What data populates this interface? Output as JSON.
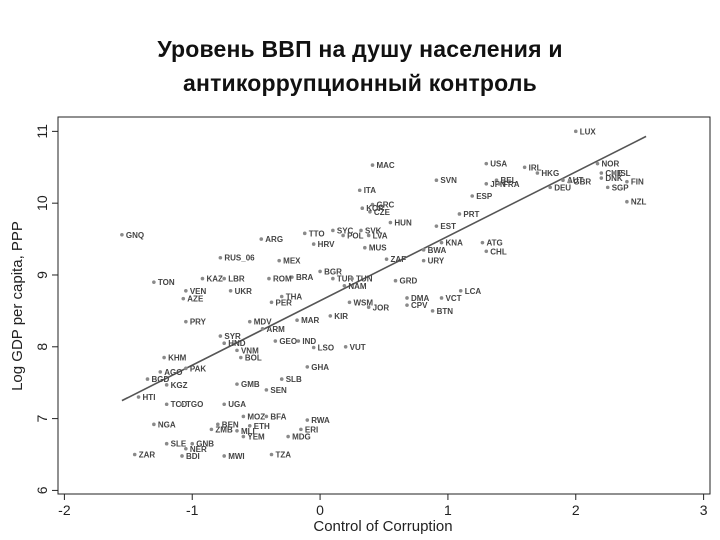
{
  "title": {
    "line1": "Уровень ВВП на душу населения и",
    "line2": "антикоррупционный контроль"
  },
  "chart_data": {
    "type": "scatter",
    "xlabel": "Control of Corruption",
    "ylabel": "Log GDP per capita, PPP",
    "xlim": [
      -2.05,
      3.05
    ],
    "ylim": [
      5.95,
      11.2
    ],
    "xticks": [
      -2,
      -1,
      0,
      1,
      2,
      3
    ],
    "yticks": [
      6,
      7,
      8,
      9,
      10,
      11
    ],
    "grid": false,
    "colors": {
      "point": "#8a8a8a",
      "line": "#555555",
      "text": "#222222"
    },
    "fit_line": {
      "x": [
        -1.55,
        2.55
      ],
      "y": [
        7.25,
        10.93
      ]
    },
    "points": [
      {
        "label": "LUX",
        "x": 2.0,
        "y": 11.0
      },
      {
        "label": "NOR",
        "x": 2.17,
        "y": 10.55
      },
      {
        "label": "USA",
        "x": 1.3,
        "y": 10.55
      },
      {
        "label": "IRL",
        "x": 1.6,
        "y": 10.5
      },
      {
        "label": "HKG",
        "x": 1.7,
        "y": 10.42
      },
      {
        "label": "CHE",
        "x": 2.2,
        "y": 10.42
      },
      {
        "label": "ISL",
        "x": 2.3,
        "y": 10.42
      },
      {
        "label": "BEL",
        "x": 1.38,
        "y": 10.32
      },
      {
        "label": "JPN",
        "x": 1.3,
        "y": 10.27
      },
      {
        "label": "FRA",
        "x": 1.4,
        "y": 10.27
      },
      {
        "label": "DEU",
        "x": 1.8,
        "y": 10.22
      },
      {
        "label": "AUT",
        "x": 1.9,
        "y": 10.32
      },
      {
        "label": "GBR",
        "x": 1.95,
        "y": 10.3
      },
      {
        "label": "DNK",
        "x": 2.2,
        "y": 10.35
      },
      {
        "label": "FIN",
        "x": 2.4,
        "y": 10.3
      },
      {
        "label": "SGP",
        "x": 2.25,
        "y": 10.22
      },
      {
        "label": "NZL",
        "x": 2.4,
        "y": 10.02
      },
      {
        "label": "MAC",
        "x": 0.41,
        "y": 10.53
      },
      {
        "label": "ITA",
        "x": 0.31,
        "y": 10.18
      },
      {
        "label": "ESP",
        "x": 1.19,
        "y": 10.1
      },
      {
        "label": "SVN",
        "x": 0.91,
        "y": 10.32
      },
      {
        "label": "PRT",
        "x": 1.09,
        "y": 9.85
      },
      {
        "label": "GRC",
        "x": 0.41,
        "y": 9.98
      },
      {
        "label": "CZE",
        "x": 0.39,
        "y": 9.88
      },
      {
        "label": "KOR",
        "x": 0.33,
        "y": 9.93
      },
      {
        "label": "HUN",
        "x": 0.55,
        "y": 9.73
      },
      {
        "label": "EST",
        "x": 0.91,
        "y": 9.68
      },
      {
        "label": "ATG",
        "x": 1.27,
        "y": 9.45
      },
      {
        "label": "CHL",
        "x": 1.3,
        "y": 9.33
      },
      {
        "label": "KNA",
        "x": 0.95,
        "y": 9.45
      },
      {
        "label": "BWA",
        "x": 0.81,
        "y": 9.35
      },
      {
        "label": "URY",
        "x": 0.81,
        "y": 9.2
      },
      {
        "label": "SYC",
        "x": 0.1,
        "y": 9.62
      },
      {
        "label": "SVK",
        "x": 0.32,
        "y": 9.62
      },
      {
        "label": "POL",
        "x": 0.18,
        "y": 9.55
      },
      {
        "label": "LVA",
        "x": 0.38,
        "y": 9.55
      },
      {
        "label": "TTO",
        "x": -0.12,
        "y": 9.58
      },
      {
        "label": "HRV",
        "x": -0.05,
        "y": 9.43
      },
      {
        "label": "MUS",
        "x": 0.35,
        "y": 9.38
      },
      {
        "label": "ZAF",
        "x": 0.52,
        "y": 9.22
      },
      {
        "label": "ARG",
        "x": -0.46,
        "y": 9.5
      },
      {
        "label": "GNQ",
        "x": -1.55,
        "y": 9.56
      },
      {
        "label": "RUS_06",
        "x": -0.78,
        "y": 9.24
      },
      {
        "label": "MEX",
        "x": -0.32,
        "y": 9.2
      },
      {
        "label": "BGR",
        "x": 0.0,
        "y": 9.05
      },
      {
        "label": "BRA",
        "x": -0.22,
        "y": 8.97
      },
      {
        "label": "TUR",
        "x": 0.1,
        "y": 8.95
      },
      {
        "label": "TUN",
        "x": 0.25,
        "y": 8.95
      },
      {
        "label": "GRD",
        "x": 0.59,
        "y": 8.92
      },
      {
        "label": "NAM",
        "x": 0.19,
        "y": 8.85
      },
      {
        "label": "ROM",
        "x": -0.4,
        "y": 8.95
      },
      {
        "label": "LBR",
        "x": -0.75,
        "y": 8.95
      },
      {
        "label": "TON",
        "x": -1.3,
        "y": 8.9
      },
      {
        "label": "KAZ",
        "x": -0.92,
        "y": 8.95
      },
      {
        "label": "VEN",
        "x": -1.05,
        "y": 8.78
      },
      {
        "label": "AZE",
        "x": -1.07,
        "y": 8.67
      },
      {
        "label": "UKR",
        "x": -0.7,
        "y": 8.78
      },
      {
        "label": "THA",
        "x": -0.3,
        "y": 8.7
      },
      {
        "label": "PER",
        "x": -0.38,
        "y": 8.62
      },
      {
        "label": "DMA",
        "x": 0.68,
        "y": 8.68
      },
      {
        "label": "VCT",
        "x": 0.95,
        "y": 8.68
      },
      {
        "label": "LCA",
        "x": 1.1,
        "y": 8.78
      },
      {
        "label": "CPV",
        "x": 0.68,
        "y": 8.58
      },
      {
        "label": "BTN",
        "x": 0.88,
        "y": 8.5
      },
      {
        "label": "WSM",
        "x": 0.23,
        "y": 8.62
      },
      {
        "label": "JOR",
        "x": 0.38,
        "y": 8.55
      },
      {
        "label": "PRY",
        "x": -1.05,
        "y": 8.35
      },
      {
        "label": "KIR",
        "x": 0.08,
        "y": 8.43
      },
      {
        "label": "MAR",
        "x": -0.18,
        "y": 8.37
      },
      {
        "label": "MDV",
        "x": -0.55,
        "y": 8.35
      },
      {
        "label": "ARM",
        "x": -0.45,
        "y": 8.25
      },
      {
        "label": "GEO",
        "x": -0.35,
        "y": 8.08
      },
      {
        "label": "IND",
        "x": -0.17,
        "y": 8.08
      },
      {
        "label": "LSO",
        "x": -0.05,
        "y": 7.99
      },
      {
        "label": "VUT",
        "x": 0.2,
        "y": 8.0
      },
      {
        "label": "HND",
        "x": -0.75,
        "y": 8.05
      },
      {
        "label": "VNM",
        "x": -0.65,
        "y": 7.95
      },
      {
        "label": "SYR",
        "x": -0.78,
        "y": 8.15
      },
      {
        "label": "KHM",
        "x": -1.22,
        "y": 7.85
      },
      {
        "label": "BOL",
        "x": -0.62,
        "y": 7.85
      },
      {
        "label": "PAK",
        "x": -1.05,
        "y": 7.7
      },
      {
        "label": "AGO",
        "x": -1.25,
        "y": 7.65
      },
      {
        "label": "BGD",
        "x": -1.35,
        "y": 7.55
      },
      {
        "label": "KGZ",
        "x": -1.2,
        "y": 7.47
      },
      {
        "label": "GHA",
        "x": -0.1,
        "y": 7.72
      },
      {
        "label": "SLB",
        "x": -0.3,
        "y": 7.55
      },
      {
        "label": "SEN",
        "x": -0.42,
        "y": 7.4
      },
      {
        "label": "GMB",
        "x": -0.65,
        "y": 7.48
      },
      {
        "label": "HTI",
        "x": -1.42,
        "y": 7.3
      },
      {
        "label": "TCD",
        "x": -1.2,
        "y": 7.2
      },
      {
        "label": "TGO",
        "x": -1.08,
        "y": 7.2
      },
      {
        "label": "UGA",
        "x": -0.75,
        "y": 7.2
      },
      {
        "label": "MOZ",
        "x": -0.6,
        "y": 7.03
      },
      {
        "label": "BFA",
        "x": -0.42,
        "y": 7.03
      },
      {
        "label": "RWA",
        "x": -0.1,
        "y": 6.98
      },
      {
        "label": "NGA",
        "x": -1.3,
        "y": 6.92
      },
      {
        "label": "ERI",
        "x": -0.15,
        "y": 6.85
      },
      {
        "label": "MDG",
        "x": -0.25,
        "y": 6.75
      },
      {
        "label": "ETH",
        "x": -0.55,
        "y": 6.9
      },
      {
        "label": "YEM",
        "x": -0.6,
        "y": 6.75
      },
      {
        "label": "ZMB",
        "x": -0.85,
        "y": 6.85
      },
      {
        "label": "MLI",
        "x": -0.65,
        "y": 6.83
      },
      {
        "label": "BEN",
        "x": -0.8,
        "y": 6.92
      },
      {
        "label": "SLE",
        "x": -1.2,
        "y": 6.65
      },
      {
        "label": "GNB",
        "x": -1.0,
        "y": 6.65
      },
      {
        "label": "NER",
        "x": -1.05,
        "y": 6.58
      },
      {
        "label": "ZAR",
        "x": -1.45,
        "y": 6.5
      },
      {
        "label": "BDI",
        "x": -1.08,
        "y": 6.48
      },
      {
        "label": "MWI",
        "x": -0.75,
        "y": 6.48
      },
      {
        "label": "TZA",
        "x": -0.38,
        "y": 6.5
      }
    ]
  }
}
